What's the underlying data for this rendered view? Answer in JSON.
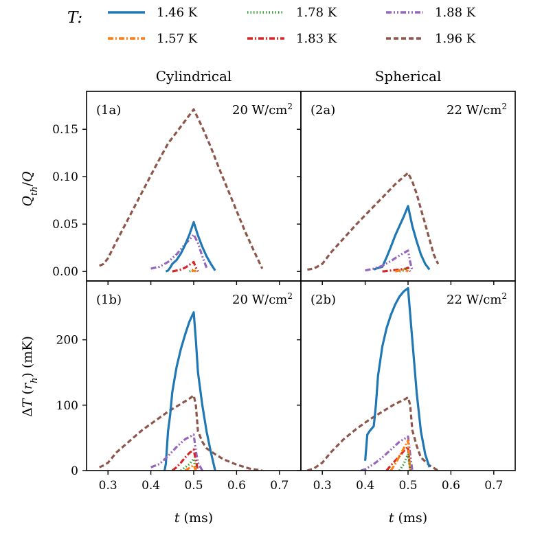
{
  "legend": {
    "title": "T:",
    "entries": [
      {
        "label": "1.46 K",
        "color": "#1f77b4",
        "style": "solid"
      },
      {
        "label": "1.57 K",
        "color": "#ff7f0e",
        "style": "dashdot"
      },
      {
        "label": "1.78 K",
        "color": "#2ca02c",
        "style": "dotted"
      },
      {
        "label": "1.83 K",
        "color": "#d62728",
        "style": "dashdot"
      },
      {
        "label": "1.88 K",
        "color": "#9467bd",
        "style": "dashdotdot"
      },
      {
        "label": "1.96 K",
        "color": "#8c564b",
        "style": "dashed"
      }
    ]
  },
  "columns": [
    "Cylindrical",
    "Spherical"
  ],
  "axes": {
    "xlabel": "t (ms)",
    "ylabel_top": "Q_th/Q",
    "ylabel_bottom": "ΔT (r_h) (mK)"
  },
  "chart_data": [
    {
      "type": "line",
      "panel": "(1a)",
      "power": "20 W/cm",
      "power_exp": "2",
      "xlim": [
        0.25,
        0.75
      ],
      "ylim": [
        -0.01,
        0.19
      ],
      "xticks": [
        0.3,
        0.4,
        0.5,
        0.6,
        0.7
      ],
      "yticks": [
        0.0,
        0.05,
        0.1,
        0.15
      ],
      "xtick_labels": [
        "0.3",
        "0.4",
        "0.5",
        "0.6",
        "0.7"
      ],
      "ytick_labels": [
        "0.00",
        "0.05",
        "0.10",
        "0.15"
      ],
      "series": [
        {
          "name": "1.96 K",
          "x": [
            0.28,
            0.29,
            0.3,
            0.32,
            0.35,
            0.38,
            0.41,
            0.44,
            0.47,
            0.5,
            0.52,
            0.54,
            0.56,
            0.58,
            0.6,
            0.62,
            0.64,
            0.66
          ],
          "y": [
            0.006,
            0.008,
            0.014,
            0.032,
            0.058,
            0.084,
            0.11,
            0.135,
            0.153,
            0.171,
            0.152,
            0.131,
            0.108,
            0.086,
            0.064,
            0.042,
            0.022,
            0.003
          ]
        },
        {
          "name": "1.88 K",
          "x": [
            0.4,
            0.42,
            0.44,
            0.46,
            0.48,
            0.495,
            0.5,
            0.51,
            0.52,
            0.53
          ],
          "y": [
            0.003,
            0.005,
            0.01,
            0.018,
            0.029,
            0.036,
            0.039,
            0.03,
            0.016,
            0.004
          ]
        },
        {
          "name": "1.46 K",
          "x": [
            0.435,
            0.44,
            0.445,
            0.45,
            0.46,
            0.47,
            0.48,
            0.49,
            0.5,
            0.51,
            0.52,
            0.53,
            0.54,
            0.55
          ],
          "y": [
            0.0,
            0.001,
            0.004,
            0.008,
            0.012,
            0.019,
            0.028,
            0.039,
            0.052,
            0.038,
            0.026,
            0.016,
            0.008,
            0.001
          ]
        },
        {
          "name": "1.83 K",
          "x": [
            0.45,
            0.46,
            0.47,
            0.48,
            0.49,
            0.5,
            0.505,
            0.51
          ],
          "y": [
            0.0,
            0.001,
            0.002,
            0.004,
            0.007,
            0.01,
            0.004,
            0.0
          ]
        },
        {
          "name": "1.78 K",
          "x": [
            0.49,
            0.495,
            0.5,
            0.505
          ],
          "y": [
            0.0,
            0.001,
            0.002,
            0.0
          ]
        },
        {
          "name": "1.57 K",
          "x": [
            0.495,
            0.5,
            0.505
          ],
          "y": [
            0.0,
            0.001,
            0.0
          ]
        }
      ]
    },
    {
      "type": "line",
      "panel": "(2a)",
      "power": "22 W/cm",
      "power_exp": "2",
      "xlim": [
        0.25,
        0.75
      ],
      "ylim": [
        -0.01,
        0.19
      ],
      "xticks": [
        0.3,
        0.4,
        0.5,
        0.6,
        0.7
      ],
      "yticks": [
        0.0,
        0.05,
        0.1,
        0.15
      ],
      "xtick_labels": [
        "0.3",
        "0.4",
        "0.5",
        "0.6",
        "0.7"
      ],
      "ytick_labels": [
        "0.00",
        "0.05",
        "0.10",
        "0.15"
      ],
      "series": [
        {
          "name": "1.96 K",
          "x": [
            0.265,
            0.28,
            0.3,
            0.32,
            0.35,
            0.38,
            0.41,
            0.44,
            0.47,
            0.5,
            0.51,
            0.52,
            0.53,
            0.54,
            0.55,
            0.56,
            0.57
          ],
          "y": [
            0.002,
            0.003,
            0.008,
            0.02,
            0.035,
            0.05,
            0.064,
            0.078,
            0.092,
            0.104,
            0.095,
            0.082,
            0.066,
            0.05,
            0.034,
            0.018,
            0.008
          ]
        },
        {
          "name": "1.46 K",
          "x": [
            0.42,
            0.425,
            0.44,
            0.45,
            0.46,
            0.47,
            0.48,
            0.49,
            0.5,
            0.51,
            0.52,
            0.53,
            0.54,
            0.55
          ],
          "y": [
            0.002,
            0.003,
            0.005,
            0.015,
            0.026,
            0.038,
            0.048,
            0.058,
            0.069,
            0.048,
            0.032,
            0.018,
            0.008,
            0.002
          ]
        },
        {
          "name": "1.88 K",
          "x": [
            0.4,
            0.42,
            0.44,
            0.46,
            0.48,
            0.5,
            0.505,
            0.51
          ],
          "y": [
            0.001,
            0.003,
            0.006,
            0.011,
            0.017,
            0.022,
            0.01,
            0.001
          ]
        },
        {
          "name": "1.83 K",
          "x": [
            0.44,
            0.46,
            0.48,
            0.495,
            0.5,
            0.505
          ],
          "y": [
            0.0,
            0.001,
            0.002,
            0.003,
            0.004,
            0.0
          ]
        },
        {
          "name": "1.78 K",
          "x": [
            0.48,
            0.49,
            0.495,
            0.5
          ],
          "y": [
            0.0,
            0.001,
            0.003,
            0.0
          ]
        },
        {
          "name": "1.57 K",
          "x": [
            0.47,
            0.48,
            0.49,
            0.5
          ],
          "y": [
            0.0,
            0.001,
            0.002,
            0.0
          ]
        }
      ]
    },
    {
      "type": "line",
      "panel": "(1b)",
      "power": "20 W/cm",
      "power_exp": "2",
      "xlim": [
        0.25,
        0.75
      ],
      "ylim": [
        0,
        290
      ],
      "xticks": [
        0.3,
        0.4,
        0.5,
        0.6,
        0.7
      ],
      "yticks": [
        0,
        100,
        200
      ],
      "xtick_labels": [
        "0.3",
        "0.4",
        "0.5",
        "0.6",
        "0.7"
      ],
      "ytick_labels": [
        "0",
        "100",
        "200"
      ],
      "series": [
        {
          "name": "1.96 K",
          "x": [
            0.28,
            0.29,
            0.3,
            0.32,
            0.35,
            0.38,
            0.41,
            0.44,
            0.47,
            0.49,
            0.5,
            0.505,
            0.51,
            0.52,
            0.53,
            0.55,
            0.57,
            0.6,
            0.63,
            0.66
          ],
          "y": [
            5,
            8,
            12,
            28,
            45,
            62,
            76,
            90,
            102,
            110,
            115,
            100,
            60,
            44,
            34,
            25,
            17,
            9,
            3,
            0
          ]
        },
        {
          "name": "1.46 K",
          "x": [
            0.432,
            0.435,
            0.44,
            0.445,
            0.45,
            0.46,
            0.47,
            0.48,
            0.49,
            0.5,
            0.505,
            0.51,
            0.52,
            0.53,
            0.54,
            0.55
          ],
          "y": [
            0,
            10,
            60,
            85,
            120,
            158,
            186,
            208,
            228,
            242,
            200,
            150,
            100,
            60,
            28,
            0
          ]
        },
        {
          "name": "1.88 K",
          "x": [
            0.4,
            0.42,
            0.44,
            0.46,
            0.48,
            0.5,
            0.505,
            0.51,
            0.52
          ],
          "y": [
            5,
            10,
            22,
            36,
            48,
            55,
            30,
            12,
            0
          ]
        },
        {
          "name": "1.83 K",
          "x": [
            0.45,
            0.46,
            0.47,
            0.48,
            0.49,
            0.5,
            0.505,
            0.51
          ],
          "y": [
            0,
            5,
            12,
            20,
            27,
            32,
            15,
            0
          ]
        },
        {
          "name": "1.78 K",
          "x": [
            0.47,
            0.48,
            0.49,
            0.495,
            0.5,
            0.505
          ],
          "y": [
            0,
            5,
            10,
            14,
            18,
            0
          ]
        },
        {
          "name": "1.57 K",
          "x": [
            0.48,
            0.49,
            0.5,
            0.505
          ],
          "y": [
            0,
            4,
            8,
            0
          ]
        }
      ]
    },
    {
      "type": "line",
      "panel": "(2b)",
      "power": "22 W/cm",
      "power_exp": "2",
      "xlim": [
        0.25,
        0.75
      ],
      "ylim": [
        0,
        290
      ],
      "xticks": [
        0.3,
        0.4,
        0.5,
        0.6,
        0.7
      ],
      "yticks": [
        0,
        100,
        200
      ],
      "xtick_labels": [
        "0.3",
        "0.4",
        "0.5",
        "0.6",
        "0.7"
      ],
      "ytick_labels": [
        "0",
        "100",
        "200"
      ],
      "series": [
        {
          "name": "1.96 K",
          "x": [
            0.265,
            0.28,
            0.3,
            0.32,
            0.35,
            0.38,
            0.41,
            0.44,
            0.47,
            0.49,
            0.5,
            0.505,
            0.51,
            0.52,
            0.53,
            0.55,
            0.57
          ],
          "y": [
            0,
            3,
            12,
            28,
            48,
            64,
            78,
            90,
            102,
            108,
            112,
            100,
            62,
            38,
            20,
            8,
            0
          ]
        },
        {
          "name": "1.46 K",
          "x": [
            0.4,
            0.405,
            0.41,
            0.42,
            0.425,
            0.43,
            0.44,
            0.45,
            0.46,
            0.47,
            0.48,
            0.49,
            0.5,
            0.51,
            0.52,
            0.53,
            0.54,
            0.55
          ],
          "y": [
            15,
            55,
            60,
            68,
            100,
            145,
            190,
            218,
            238,
            254,
            266,
            274,
            279,
            200,
            120,
            60,
            25,
            5
          ]
        },
        {
          "name": "1.88 K",
          "x": [
            0.39,
            0.4,
            0.42,
            0.44,
            0.46,
            0.48,
            0.5,
            0.505,
            0.51
          ],
          "y": [
            0,
            2,
            10,
            20,
            32,
            44,
            52,
            25,
            0
          ]
        },
        {
          "name": "1.83 K",
          "x": [
            0.45,
            0.46,
            0.47,
            0.48,
            0.49,
            0.5,
            0.505
          ],
          "y": [
            0,
            8,
            15,
            22,
            30,
            36,
            0
          ]
        },
        {
          "name": "1.57 K",
          "x": [
            0.46,
            0.47,
            0.48,
            0.49,
            0.5,
            0.505
          ],
          "y": [
            0,
            10,
            22,
            34,
            46,
            0
          ]
        },
        {
          "name": "1.78 K",
          "x": [
            0.48,
            0.49,
            0.495,
            0.5,
            0.505
          ],
          "y": [
            0,
            10,
            18,
            25,
            0
          ]
        }
      ]
    }
  ]
}
